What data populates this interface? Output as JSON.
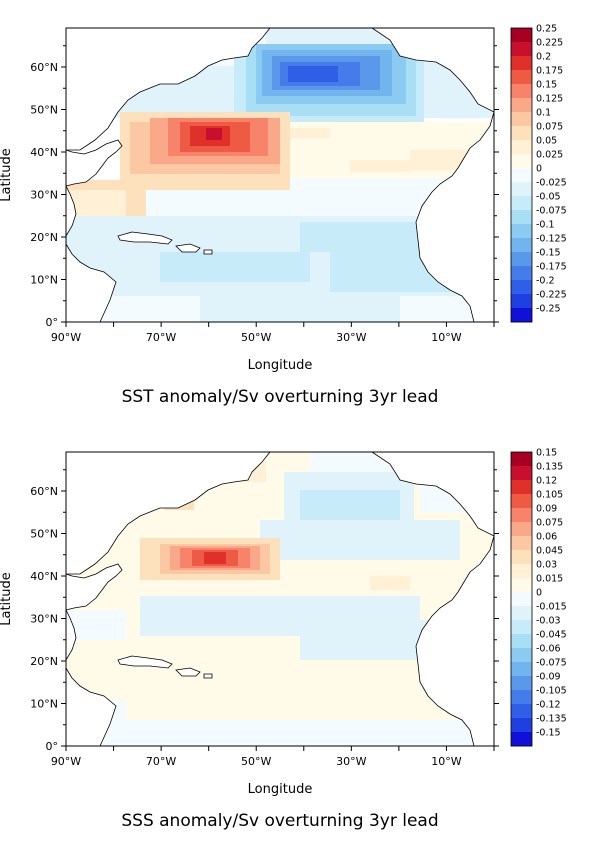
{
  "panels": [
    {
      "title": "SST anomaly/Sv overturning 3yr lead",
      "xlabel": "Longitude",
      "ylabel": "Latitude",
      "x_ticks": [
        "90°W",
        "70°W",
        "50°W",
        "30°W",
        "10°W"
      ],
      "y_ticks": [
        "0°",
        "10°N",
        "20°N",
        "30°N",
        "40°N",
        "50°N",
        "60°N"
      ],
      "colorbar_labels": [
        "0.25",
        "0.225",
        "0.2",
        "0.175",
        "0.15",
        "0.125",
        "0.1",
        "0.075",
        "0.05",
        "0.025",
        "0",
        "-0.025",
        "-0.05",
        "-0.075",
        "-0.1",
        "-0.125",
        "-0.15",
        "-0.175",
        "-0.2",
        "-0.225",
        "-0.25"
      ],
      "colors": [
        "#a50022",
        "#c8102e",
        "#e0302a",
        "#ef5a45",
        "#f6836a",
        "#f9a98a",
        "#fcc8a4",
        "#fde0bc",
        "#fff0d6",
        "#fffbe8",
        "#f4fbff",
        "#e0f3fb",
        "#c7ebf8",
        "#a9dff4",
        "#8ccbf1",
        "#72b4ee",
        "#5a99ea",
        "#457cea",
        "#2f5fe6",
        "#1f3fe0",
        "#1010d8"
      ]
    },
    {
      "title": "SSS anomaly/Sv overturning 3yr lead",
      "xlabel": "Longitude",
      "ylabel": "Latitude",
      "x_ticks": [
        "90°W",
        "70°W",
        "50°W",
        "30°W",
        "10°W"
      ],
      "y_ticks": [
        "0°",
        "10°N",
        "20°N",
        "30°N",
        "40°N",
        "50°N",
        "60°N"
      ],
      "colorbar_labels": [
        "0.15",
        "0.135",
        "0.12",
        "0.105",
        "0.09",
        "0.075",
        "0.06",
        "0.045",
        "0.03",
        "0.015",
        "0",
        "-0.015",
        "-0.03",
        "-0.045",
        "-0.06",
        "-0.075",
        "-0.09",
        "-0.105",
        "-0.12",
        "-0.135",
        "-0.15"
      ],
      "colors": [
        "#a50022",
        "#c8102e",
        "#e0302a",
        "#ef5a45",
        "#f6836a",
        "#f9a98a",
        "#fcc8a4",
        "#fde0bc",
        "#fff0d6",
        "#fffbe8",
        "#f4fbff",
        "#e0f3fb",
        "#c7ebf8",
        "#a9dff4",
        "#8ccbf1",
        "#72b4ee",
        "#5a99ea",
        "#457cea",
        "#2f5fe6",
        "#1f3fe0",
        "#1010d8"
      ]
    }
  ]
}
